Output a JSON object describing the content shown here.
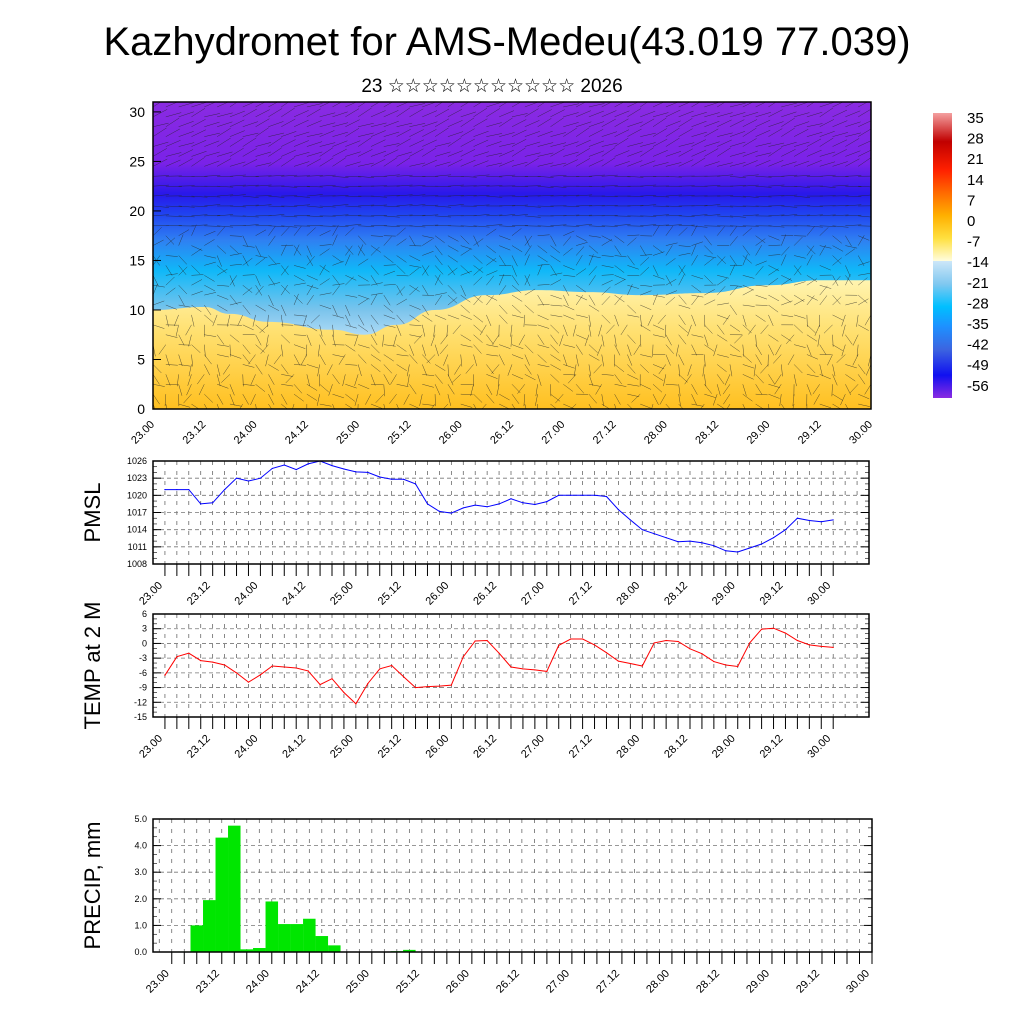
{
  "title": "Kazhydromet for AMS-Medeu(43.019 77.039)",
  "subtitle": "23 ☆☆☆☆☆☆☆☆☆☆☆ 2026",
  "time_labels": [
    "23.00",
    "23.12",
    "24.00",
    "24.12",
    "25.00",
    "25.12",
    "26.00",
    "26.12",
    "27.00",
    "27.12",
    "28.00",
    "28.12",
    "29.00",
    "29.12",
    "30.00"
  ],
  "chart_data": [
    {
      "type": "heatmap",
      "name": "temperature-wind-cross-section",
      "ylim": [
        0,
        31
      ],
      "yticks": [
        0,
        5,
        10,
        15,
        20,
        25,
        30
      ],
      "xlim": [
        0,
        56
      ],
      "x_step_hours": 3,
      "colorbar": {
        "labels": [
          "35",
          "28",
          "21",
          "14",
          "7",
          "0",
          "-7",
          "-14",
          "-21",
          "-28",
          "-35",
          "-42",
          "-49",
          "-56"
        ],
        "range": [
          -60,
          38
        ]
      },
      "contour_minus14_height": {
        "x": [
          0,
          4,
          6,
          9,
          14,
          16.5,
          19,
          22,
          26,
          30,
          34,
          38,
          43,
          48,
          52,
          56
        ],
        "y": [
          10,
          10.3,
          9.6,
          8.8,
          8,
          7.5,
          8.5,
          10,
          11.5,
          12,
          11.8,
          11.5,
          11.7,
          12.5,
          13,
          13
        ]
      }
    },
    {
      "type": "line",
      "ylabel": "PMSL",
      "ylim": [
        1008,
        1026
      ],
      "yticks": [
        1008,
        1011,
        1014,
        1017,
        1020,
        1023,
        1026
      ],
      "color": "#0000ff",
      "values": [
        1021,
        1021,
        1021,
        1018.5,
        1018.7,
        1021,
        1023,
        1022.5,
        1023,
        1024.7,
        1025.3,
        1024.5,
        1025.5,
        1026,
        1025.2,
        1024.6,
        1024.1,
        1024,
        1023.2,
        1022.8,
        1022.8,
        1022,
        1018.5,
        1017.2,
        1016.9,
        1017.8,
        1018.3,
        1018,
        1018.5,
        1019.4,
        1018.7,
        1018.4,
        1018.9,
        1020,
        1020,
        1020,
        1020,
        1019.8,
        1017.5,
        1015.7,
        1014,
        1013.3,
        1012.6,
        1011.9,
        1012,
        1011.7,
        1011.2,
        1010.3,
        1010.1,
        1010.8,
        1011.5,
        1012.6,
        1014,
        1016,
        1015.6,
        1015.4,
        1015.7
      ]
    },
    {
      "type": "line",
      "ylabel": "TEMP at 2 M",
      "ylim": [
        -15,
        6
      ],
      "yticks": [
        -15,
        -12,
        -9,
        -6,
        -3,
        0,
        3,
        6
      ],
      "color": "#ff0000",
      "values": [
        -6.5,
        -2.7,
        -2,
        -3.5,
        -3.8,
        -4.4,
        -6,
        -7.9,
        -6.4,
        -4.6,
        -4.8,
        -5,
        -5.6,
        -8.4,
        -7.2,
        -10,
        -12.3,
        -8.2,
        -5.2,
        -4.5,
        -6.8,
        -9,
        -8.8,
        -8.7,
        -8.5,
        -2.7,
        0.5,
        0.6,
        -2,
        -4.8,
        -5.2,
        -5.4,
        -5.7,
        -0.4,
        0.9,
        0.9,
        -0.3,
        -1.9,
        -3.6,
        -4.1,
        -4.6,
        0.1,
        0.6,
        0.4,
        -1.1,
        -2.1,
        -3.7,
        -4.4,
        -4.7,
        0.1,
        2.9,
        3.1,
        2.1,
        0.6,
        -0.3,
        -0.6,
        -0.8
      ]
    },
    {
      "type": "bar",
      "ylabel": "PRECIP, mm",
      "ylim": [
        0,
        5
      ],
      "yticks": [
        "0.0",
        "1.0",
        "2.0",
        "3.0",
        "4.0",
        "5.0"
      ],
      "color": "#00e600",
      "values": [
        0,
        0.02,
        1.0,
        1.95,
        4.3,
        4.75,
        0.1,
        0.15,
        1.9,
        1.05,
        1.05,
        1.25,
        0.6,
        0.25,
        0,
        0,
        0,
        0,
        0.03,
        0.08,
        0,
        0,
        0,
        0,
        0,
        0,
        0,
        0,
        0,
        0,
        0,
        0,
        0,
        0,
        0,
        0,
        0,
        0,
        0,
        0,
        0,
        0,
        0,
        0,
        0,
        0,
        0,
        0,
        0,
        0,
        0,
        0,
        0,
        0,
        0,
        0,
        0
      ]
    }
  ]
}
